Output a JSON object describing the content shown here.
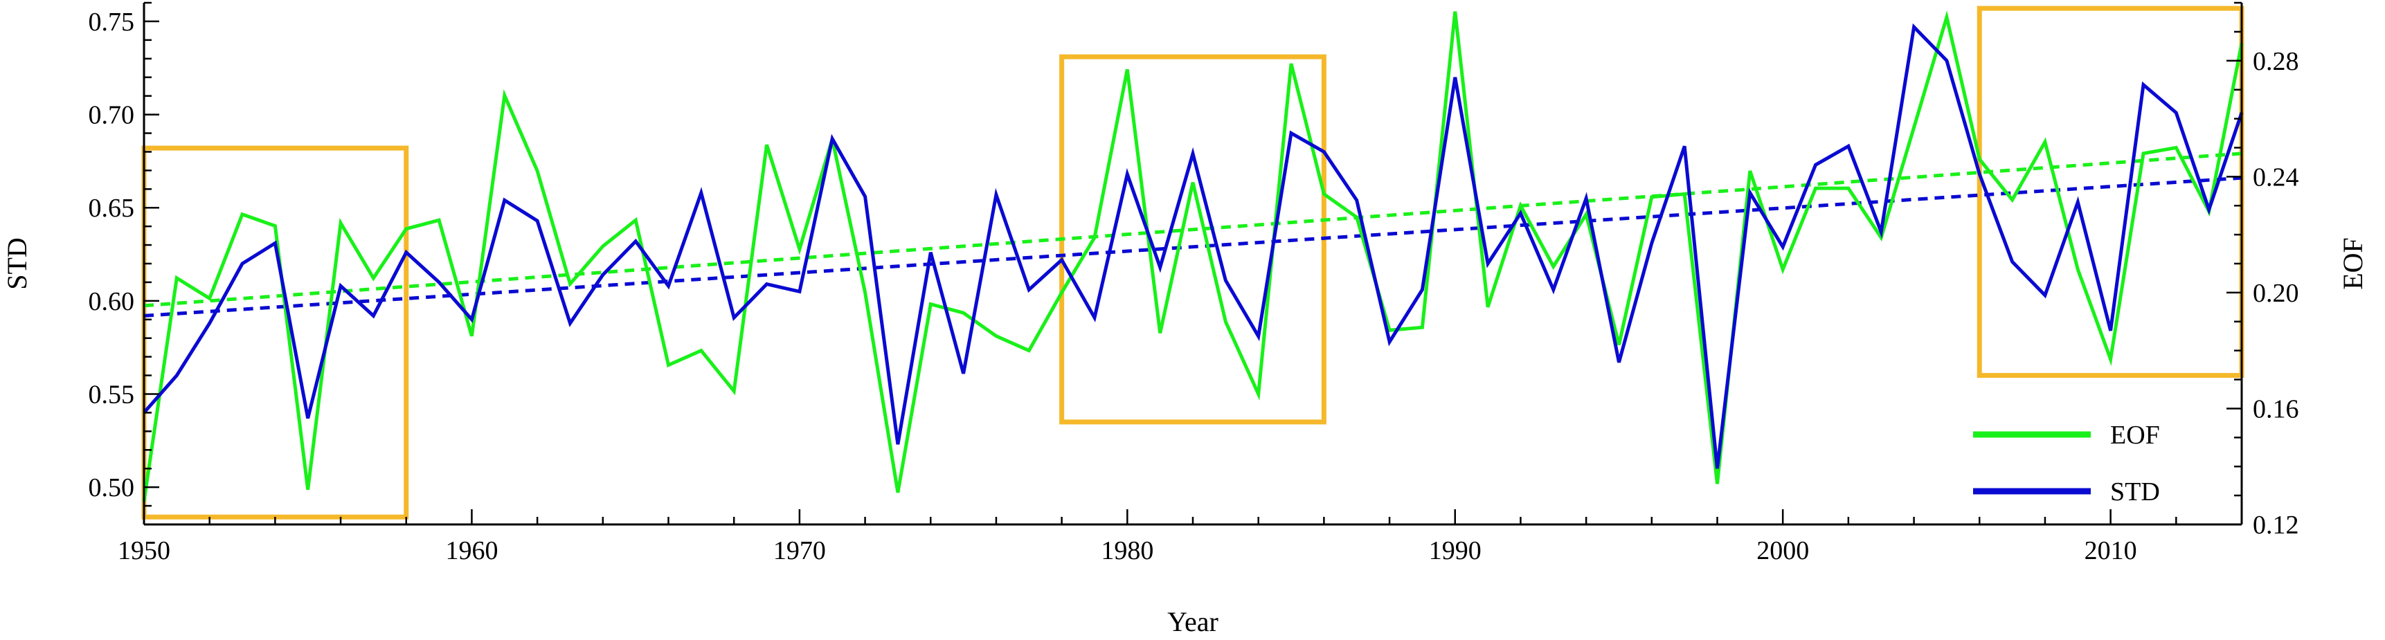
{
  "chart_data": {
    "type": "line",
    "xlabel": "Year",
    "ylabel_left": "STD",
    "ylabel_right": "EOF",
    "xlim": [
      1950,
      2014
    ],
    "ylim_left": [
      0.48,
      0.76
    ],
    "ylim_right": [
      0.12,
      0.3
    ],
    "x_ticks": [
      1950,
      1960,
      1970,
      1980,
      1990,
      2000,
      2010
    ],
    "y_ticks_left": [
      "0.50",
      "0.55",
      "0.60",
      "0.65",
      "0.70",
      "0.75"
    ],
    "y_ticks_right": [
      "0.12",
      "0.16",
      "0.20",
      "0.24",
      "0.28"
    ],
    "grid": false,
    "legend_position": "bottom-right",
    "colors": {
      "EOF": "#19f019",
      "STD": "#0a0ad2",
      "highlight": "#f5b82a"
    },
    "x": [
      1950,
      1951,
      1952,
      1953,
      1954,
      1955,
      1956,
      1957,
      1958,
      1959,
      1960,
      1961,
      1962,
      1963,
      1964,
      1965,
      1966,
      1967,
      1968,
      1969,
      1970,
      1971,
      1972,
      1973,
      1974,
      1975,
      1976,
      1977,
      1978,
      1979,
      1980,
      1981,
      1982,
      1983,
      1984,
      1985,
      1986,
      1987,
      1988,
      1989,
      1990,
      1991,
      1992,
      1993,
      1994,
      1995,
      1996,
      1997,
      1998,
      1999,
      2000,
      2001,
      2002,
      2003,
      2004,
      2005,
      2006,
      2007,
      2008,
      2009,
      2010,
      2011,
      2012,
      2013,
      2014
    ],
    "series": [
      {
        "name": "EOF",
        "axis": "right",
        "values": [
          0.128,
          0.205,
          0.198,
          0.227,
          0.223,
          0.132,
          0.224,
          0.205,
          0.222,
          0.225,
          0.185,
          0.268,
          0.242,
          0.203,
          0.216,
          0.225,
          0.175,
          0.18,
          0.166,
          0.251,
          0.215,
          0.253,
          0.2,
          0.131,
          0.196,
          0.193,
          0.185,
          0.18,
          0.2,
          0.219,
          0.277,
          0.186,
          0.238,
          0.19,
          0.165,
          0.279,
          0.234,
          0.226,
          0.187,
          0.188,
          0.297,
          0.195,
          0.23,
          0.209,
          0.227,
          0.182,
          0.233,
          0.234,
          0.134,
          0.242,
          0.208,
          0.236,
          0.236,
          0.219,
          0.257,
          0.295,
          0.246,
          0.232,
          0.252,
          0.208,
          0.177,
          0.248,
          0.25,
          0.228,
          0.286
        ]
      },
      {
        "name": "STD",
        "axis": "left",
        "values": [
          0.54,
          0.56,
          0.588,
          0.62,
          0.631,
          0.537,
          0.608,
          0.592,
          0.626,
          0.61,
          0.59,
          0.654,
          0.643,
          0.588,
          0.614,
          0.632,
          0.608,
          0.658,
          0.591,
          0.609,
          0.605,
          0.687,
          0.656,
          0.523,
          0.626,
          0.561,
          0.657,
          0.606,
          0.622,
          0.591,
          0.668,
          0.618,
          0.679,
          0.611,
          0.581,
          0.69,
          0.68,
          0.654,
          0.578,
          0.606,
          0.72,
          0.62,
          0.647,
          0.606,
          0.655,
          0.567,
          0.631,
          0.683,
          0.51,
          0.658,
          0.629,
          0.673,
          0.683,
          0.637,
          0.747,
          0.729,
          0.668,
          0.621,
          0.603,
          0.653,
          0.584,
          0.716,
          0.701,
          0.649,
          0.701
        ]
      }
    ],
    "trend_lines": [
      {
        "series": "EOF",
        "axis": "right",
        "from": [
          1950,
          0.1955
        ],
        "to": [
          2014,
          0.248
        ]
      },
      {
        "series": "STD",
        "axis": "left",
        "from": [
          1950,
          0.592
        ],
        "to": [
          2014,
          0.666
        ]
      }
    ],
    "highlight_boxes": [
      {
        "x_range": [
          1950,
          1958
        ],
        "y_range": [
          0.484,
          0.682
        ],
        "axis": "left"
      },
      {
        "x_range": [
          1978,
          1986
        ],
        "y_range": [
          0.535,
          0.731
        ],
        "axis": "left"
      },
      {
        "x_range": [
          2006,
          2014
        ],
        "y_range": [
          0.56,
          0.757
        ],
        "axis": "left"
      }
    ],
    "legend": [
      {
        "label": "EOF"
      },
      {
        "label": "STD"
      }
    ]
  }
}
